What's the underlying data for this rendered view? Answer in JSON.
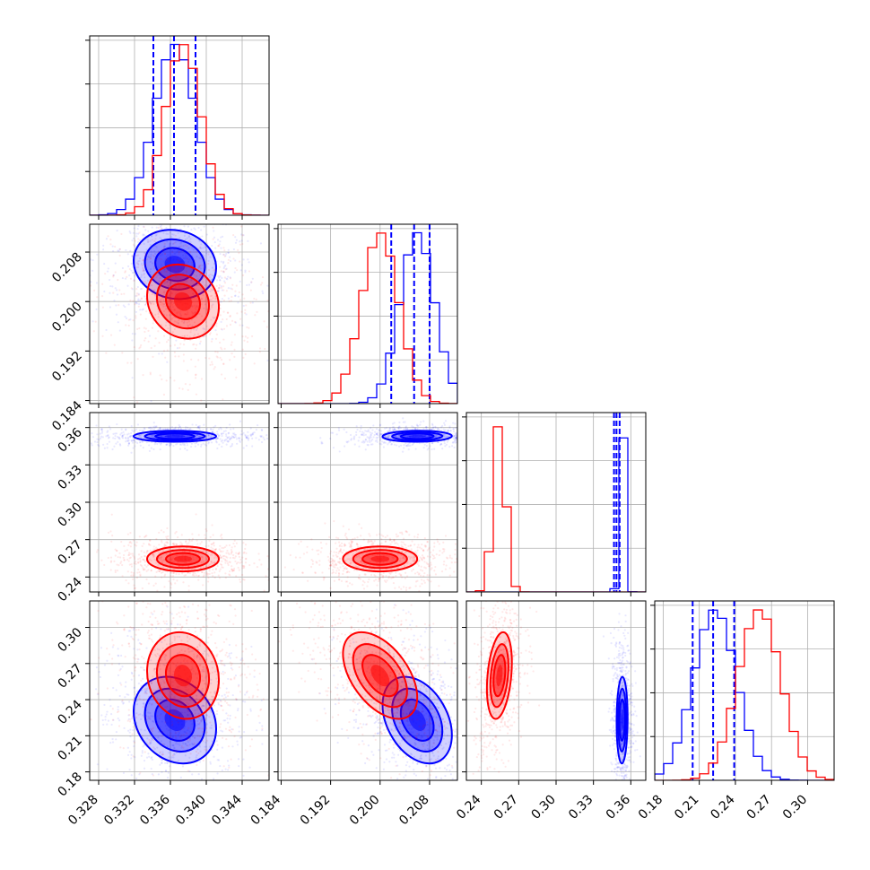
{
  "chart_data": {
    "type": "corner",
    "grid": true,
    "parameters": [
      {
        "ticks": [
          "0.328",
          "0.332",
          "0.336",
          "0.340",
          "0.344"
        ],
        "tick_values": [
          0.328,
          0.332,
          0.336,
          0.34,
          0.344
        ],
        "range": [
          0.327,
          0.347
        ]
      },
      {
        "ticks": [
          "0.184",
          "0.192",
          "0.200",
          "0.208"
        ],
        "tick_values": [
          0.184,
          0.192,
          0.2,
          0.208
        ],
        "range": [
          0.1835,
          0.2125
        ]
      },
      {
        "ticks": [
          "0.24",
          "0.27",
          "0.30",
          "0.33",
          "0.36"
        ],
        "tick_values": [
          0.24,
          0.27,
          0.3,
          0.33,
          0.36
        ],
        "range": [
          0.228,
          0.372
        ]
      },
      {
        "ticks": [
          "0.18",
          "0.21",
          "0.24",
          "0.27",
          "0.30"
        ],
        "tick_values": [
          0.18,
          0.21,
          0.24,
          0.27,
          0.3
        ],
        "range": [
          0.173,
          0.322
        ]
      }
    ],
    "series": [
      {
        "color": "#0000ff",
        "means": [
          0.3365,
          0.206,
          0.353,
          0.223
        ],
        "stds": [
          0.0023,
          0.0028,
          0.0022,
          0.018
        ],
        "quantile_lines": [
          [
            0.3341,
            0.3364,
            0.3388
          ],
          [
            0.2018,
            0.2055,
            0.208
          ],
          [
            0.3465,
            0.3485,
            0.351
          ],
          [
            0.2045,
            0.2215,
            0.239
          ]
        ],
        "correlations": {
          "1-0": -0.1,
          "2-0": 0.0,
          "2-1": 0.05,
          "3-0": -0.2,
          "3-1": -0.35,
          "3-2": 0.05
        }
      },
      {
        "color": "#ff0000",
        "means": [
          0.3374,
          0.2,
          0.2545,
          0.26
        ],
        "stds": [
          0.002,
          0.003,
          0.005,
          0.018
        ],
        "correlations": {
          "1-0": -0.15,
          "2-0": 0.0,
          "2-1": 0.0,
          "3-0": -0.1,
          "3-1": -0.5,
          "3-2": 0.3
        }
      }
    ]
  }
}
